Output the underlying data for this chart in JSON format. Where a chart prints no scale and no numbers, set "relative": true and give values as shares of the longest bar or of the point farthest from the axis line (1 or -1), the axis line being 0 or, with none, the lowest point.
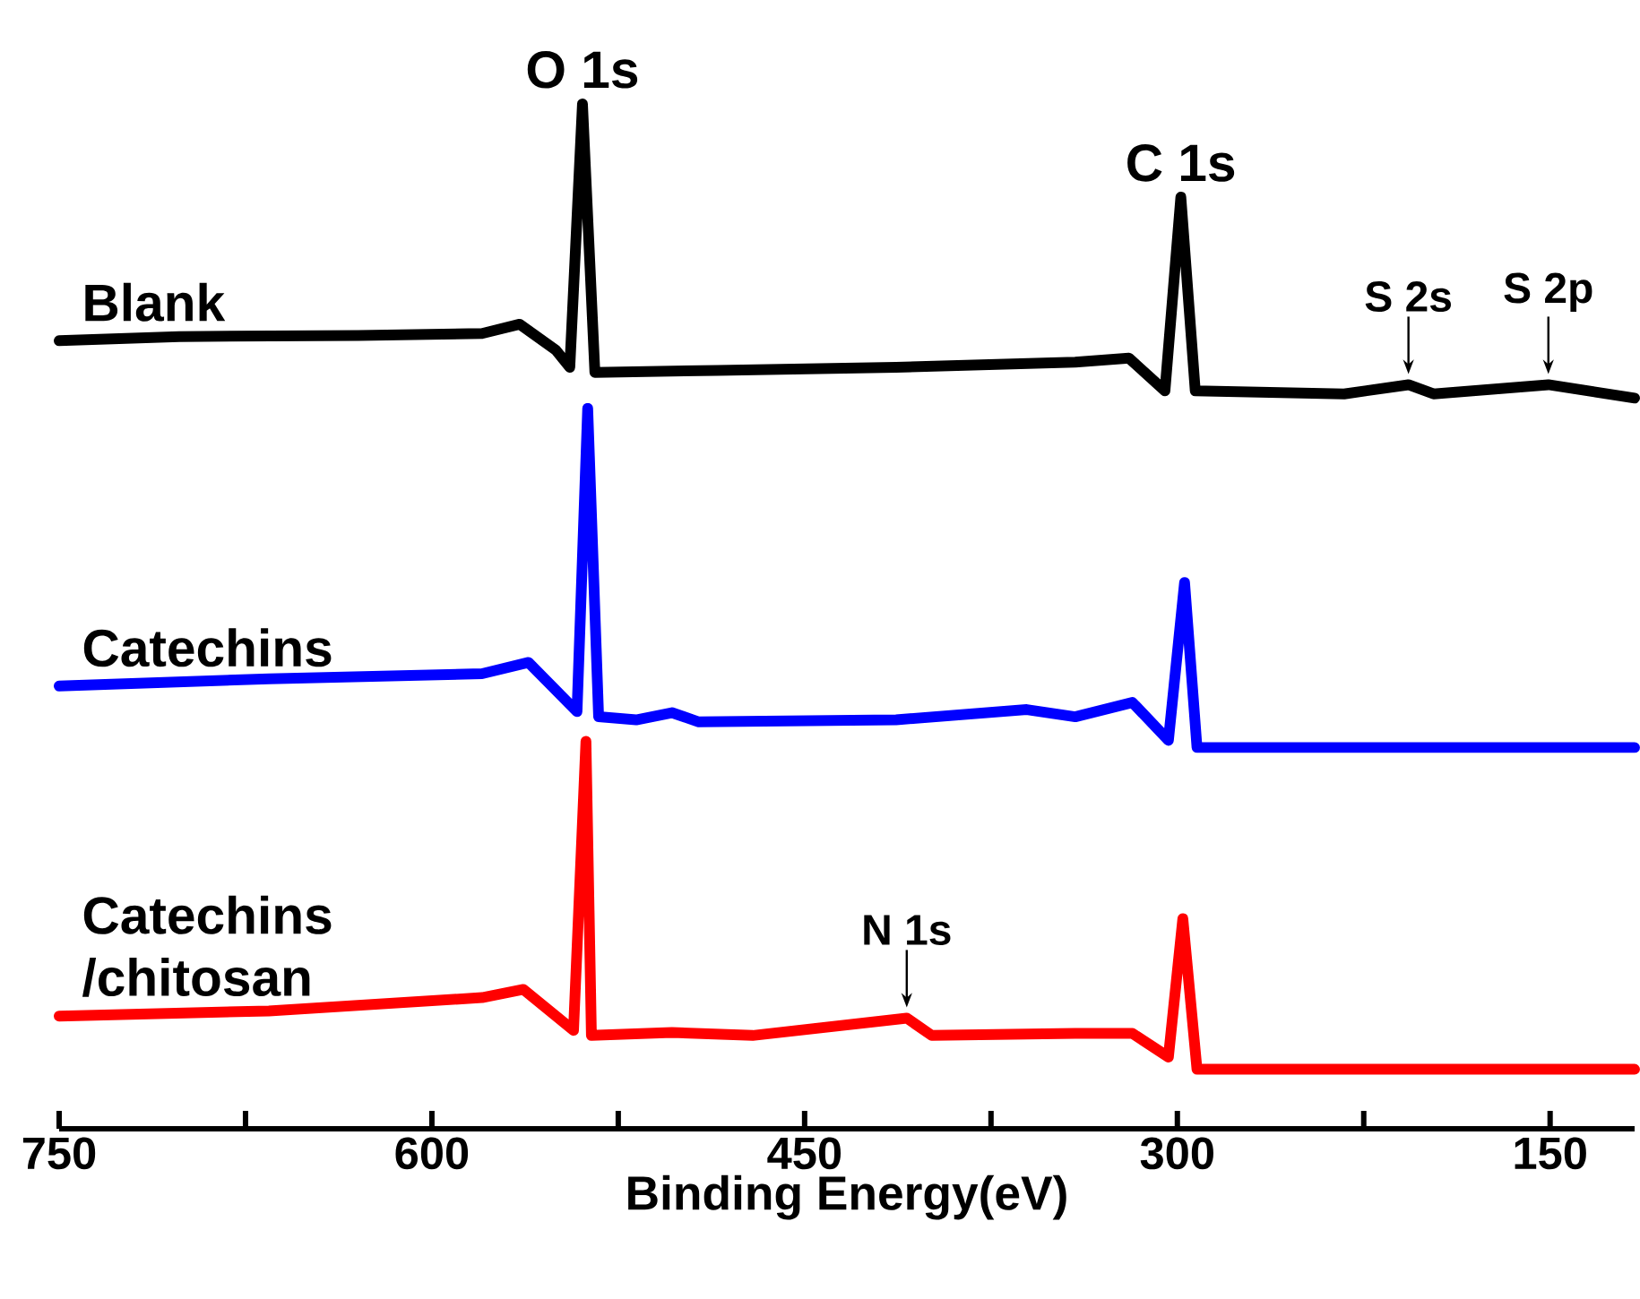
{
  "chart_data": {
    "type": "line",
    "relative": true,
    "xlabel": "Binding Energy(eV)",
    "xlim": [
      750,
      116
    ],
    "xticks": [
      750,
      {
        "value": 675,
        "label": null
      },
      600,
      {
        "value": 525,
        "label": null
      },
      450,
      {
        "value": 375,
        "label": null
      },
      300,
      {
        "value": 225,
        "label": null
      },
      150
    ],
    "series": [
      {
        "name": "Blank",
        "color": "#000000",
        "x": [
          750,
          701.7,
          629.6,
          579.8,
          564.7,
          550.2,
          544.5,
          539.4,
          534.4,
          485.3,
          413.2,
          341.1,
          319.5,
          305.0,
          298.6,
          292.8,
          232.9,
          207.0,
          196.9,
          150.7,
          116
        ],
        "values": [
          0.769,
          0.773,
          0.774,
          0.776,
          0.785,
          0.76,
          0.743,
          1.0,
          0.738,
          0.74,
          0.743,
          0.748,
          0.752,
          0.72,
          0.909,
          0.72,
          0.717,
          0.726,
          0.717,
          0.726,
          0.713
        ]
      },
      {
        "name": "Catechins",
        "color": "#0000ff",
        "x": [
          750,
          665.6,
          579.8,
          561.1,
          541.6,
          537.3,
          532.9,
          517.8,
          503.4,
          492.6,
          413.2,
          360.6,
          341.1,
          318.1,
          303.6,
          297.1,
          292.1,
          196.9,
          116
        ],
        "values": [
          0.432,
          0.439,
          0.444,
          0.455,
          0.407,
          0.703,
          0.402,
          0.399,
          0.406,
          0.397,
          0.399,
          0.409,
          0.402,
          0.416,
          0.379,
          0.533,
          0.372,
          0.372,
          0.372
        ]
      },
      {
        "name": "Catechins /chitosan",
        "color": "#ff0000",
        "x": [
          750,
          665.6,
          579.8,
          563.2,
          543.0,
          538.0,
          535.8,
          503.4,
          470.9,
          408.9,
          398.8,
          341.1,
          318.1,
          303.6,
          297.8,
          292.1,
          116
        ],
        "values": [
          0.11,
          0.115,
          0.128,
          0.136,
          0.096,
          0.378,
          0.091,
          0.094,
          0.091,
          0.108,
          0.091,
          0.093,
          0.093,
          0.07,
          0.205,
          0.058,
          0.058
        ]
      }
    ],
    "annotations": [
      {
        "text": "O 1s",
        "x": 539.4,
        "y": 1.0
      },
      {
        "text": "C 1s",
        "x": 298.6,
        "y": 0.909
      },
      {
        "text": "S 2s",
        "x": 207.0,
        "y": 0.726
      },
      {
        "text": "S 2p",
        "x": 150.7,
        "y": 0.726
      },
      {
        "text": "N 1s",
        "x": 408.9,
        "y": 0.108
      }
    ]
  }
}
